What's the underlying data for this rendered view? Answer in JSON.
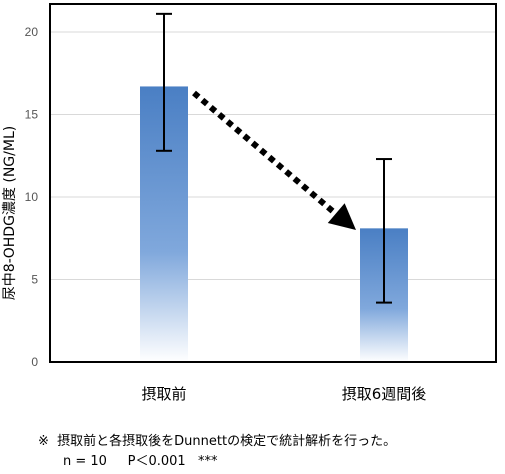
{
  "chart_data": {
    "type": "bar",
    "categories": [
      "摂取前",
      "摂取6週間後"
    ],
    "values": [
      16.7,
      8.1
    ],
    "error_high": [
      21.1,
      12.3
    ],
    "error_low": [
      12.8,
      3.6
    ],
    "ylabel": "尿中8-OHDG濃度 (NG/ML)",
    "xlabel": "",
    "ylim": [
      0,
      21
    ],
    "yticks": [
      0,
      5,
      10,
      15,
      20
    ],
    "grid": true,
    "bar_color": "#5b8fd0",
    "annotation": "dotted arrow from 摂取前 to 摂取6週間後 (decrease)"
  },
  "notes": {
    "line1": "※  摂取前と各摂取後をDunnettの検定で統計解析を行った。",
    "line2": "n = 10     P＜0.001   ***"
  }
}
